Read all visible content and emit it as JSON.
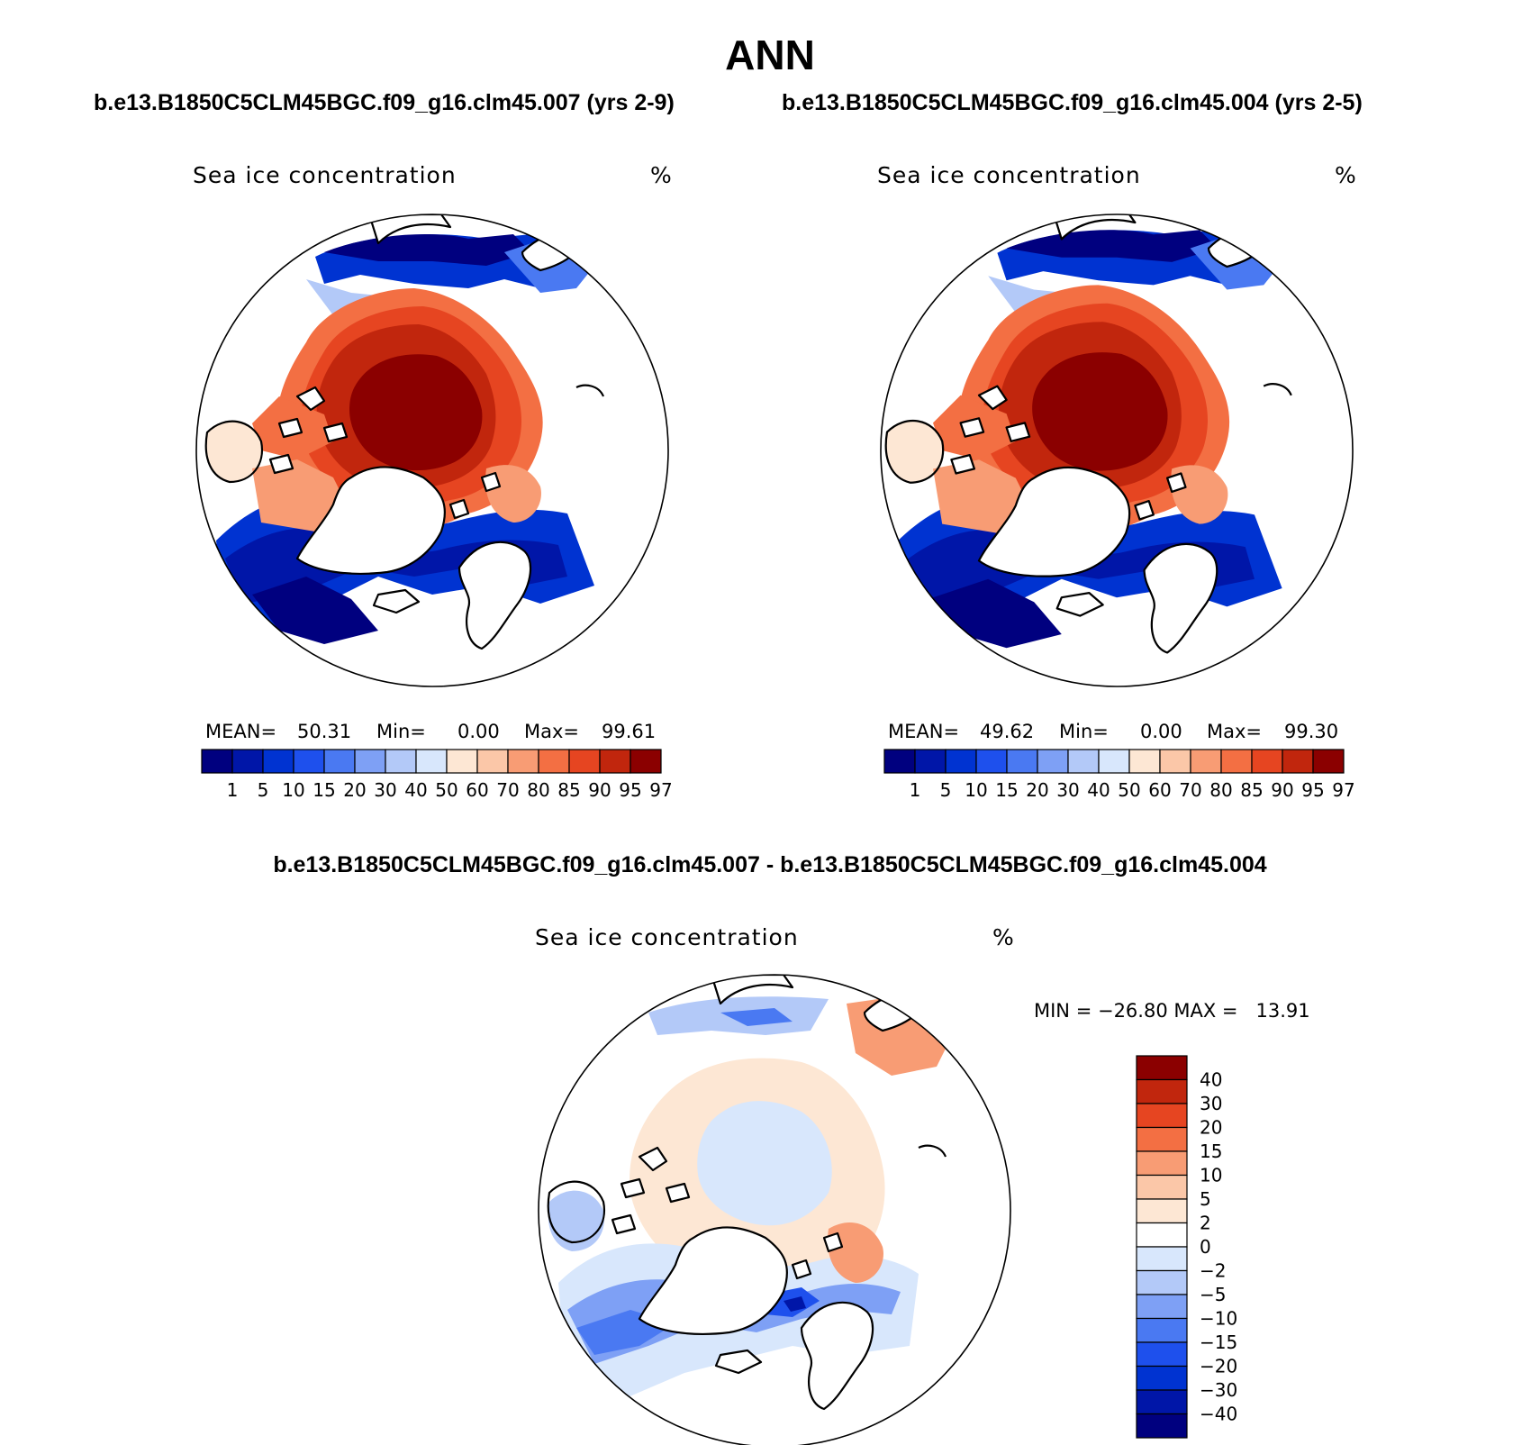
{
  "main_title": "ANN",
  "case_a_title": "b.e13.B1850C5CLM45BGC.f09_g16.clm45.007 (yrs 2-9)",
  "case_b_title": "b.e13.B1850C5CLM45BGC.f09_g16.clm45.004 (yrs 2-5)",
  "diff_title": "b.e13.B1850C5CLM45BGC.f09_g16.clm45.007 - b.e13.B1850C5CLM45BGC.f09_g16.clm45.004",
  "panels": [
    {
      "variable": "Sea ice concentration",
      "units": "%",
      "stats": {
        "mean_label": "MEAN=",
        "mean": "50.31",
        "min_label": "Min=",
        "min": "0.00",
        "max_label": "Max=",
        "max": "99.61"
      }
    },
    {
      "variable": "Sea ice concentration",
      "units": "%",
      "stats": {
        "mean_label": "MEAN=",
        "mean": "49.62",
        "min_label": "Min=",
        "min": "0.00",
        "max_label": "Max=",
        "max": "99.30"
      }
    }
  ],
  "diff_panel": {
    "variable": "Sea ice concentration",
    "units": "%",
    "stats": "MIN = −26.80 MAX =   13.91"
  },
  "colorbar_abs": {
    "levels": [
      "1",
      "5",
      "10",
      "15",
      "20",
      "30",
      "40",
      "50",
      "60",
      "70",
      "80",
      "85",
      "90",
      "95",
      "97"
    ],
    "colors": [
      "#00007f",
      "#0016a8",
      "#0033d1",
      "#1e50ed",
      "#4a79f2",
      "#7ea0f5",
      "#b3c9f8",
      "#d8e7fc",
      "#fde7d4",
      "#fbc7a8",
      "#f89c74",
      "#f36f43",
      "#e64521",
      "#c1260d",
      "#8b0000"
    ]
  },
  "colorbar_diff": {
    "levels": [
      "40",
      "30",
      "20",
      "15",
      "10",
      "5",
      "2",
      "0",
      "−2",
      "−5",
      "−10",
      "−15",
      "−20",
      "−30",
      "−40"
    ],
    "colors": [
      "#8b0000",
      "#c1260d",
      "#e64521",
      "#f36f43",
      "#f89c74",
      "#fbc7a8",
      "#fde7d4",
      "#ffffff",
      "#d8e7fc",
      "#b3c9f8",
      "#7ea0f5",
      "#4a79f2",
      "#1e50ed",
      "#0033d1",
      "#0016a8",
      "#00007f"
    ]
  }
}
